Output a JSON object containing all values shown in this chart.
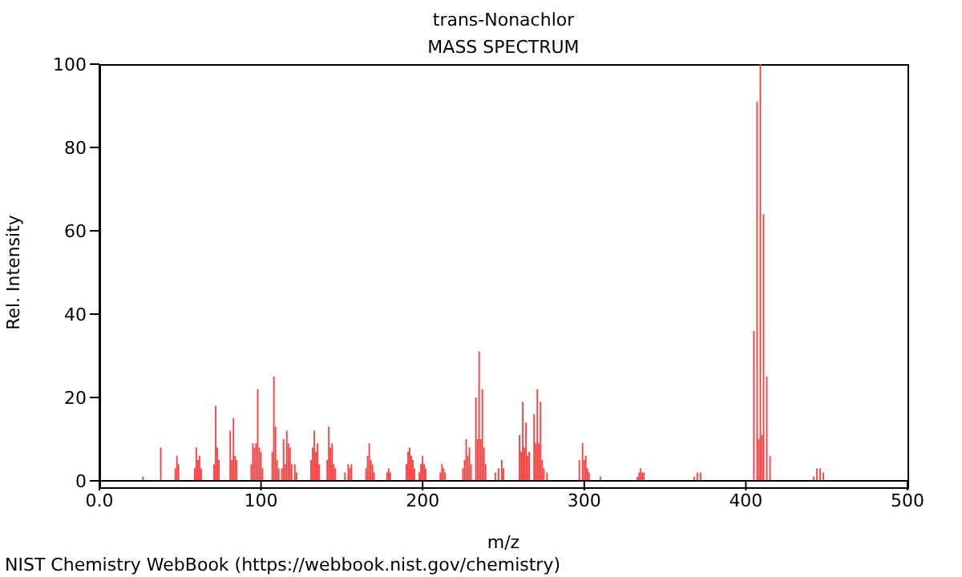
{
  "chart_data": {
    "type": "bar",
    "title": "trans-Nonachlor",
    "subtitle": "MASS SPECTRUM",
    "xlabel": "m/z",
    "ylabel": "Rel. Intensity",
    "annotations": [
      "NIST Chemistry WebBook (https://webbook.nist.gov/chemistry)"
    ],
    "x": [
      27,
      36,
      37,
      38,
      47,
      48,
      49,
      59,
      60,
      61,
      62,
      63,
      71,
      72,
      73,
      74,
      81,
      82,
      83,
      84,
      85,
      94,
      95,
      96,
      97,
      98,
      99,
      100,
      101,
      107,
      108,
      109,
      110,
      111,
      113,
      114,
      115,
      116,
      117,
      118,
      119,
      121,
      122,
      131,
      132,
      133,
      134,
      135,
      136,
      141,
      142,
      143,
      144,
      145,
      146,
      152,
      154,
      155,
      156,
      165,
      166,
      167,
      168,
      169,
      170,
      178,
      179,
      180,
      190,
      191,
      192,
      193,
      194,
      195,
      198,
      199,
      200,
      201,
      202,
      211,
      212,
      213,
      214,
      225,
      226,
      227,
      228,
      229,
      230,
      233,
      234,
      235,
      236,
      237,
      238,
      239,
      245,
      247,
      249,
      250,
      260,
      261,
      262,
      263,
      264,
      265,
      266,
      269,
      270,
      271,
      272,
      273,
      274,
      275,
      277,
      284,
      286,
      288,
      297,
      299,
      300,
      301,
      302,
      303,
      310,
      333,
      334,
      335,
      336,
      337,
      368,
      370,
      372,
      405,
      407,
      408,
      409,
      410,
      411,
      413,
      415,
      442,
      444,
      446,
      448
    ],
    "values": [
      1,
      null,
      null,
      8,
      3,
      6,
      4,
      3,
      8,
      5,
      6,
      3,
      4,
      18,
      8,
      5,
      12,
      5,
      15,
      6,
      5,
      4,
      9,
      8,
      9,
      22,
      8,
      7,
      3,
      7,
      25,
      13,
      5,
      3,
      3,
      10,
      4,
      12,
      9,
      8,
      4,
      4,
      2,
      5,
      8,
      12,
      7,
      9,
      4,
      5,
      13,
      8,
      9,
      4,
      3,
      2,
      4,
      3,
      4,
      3,
      6,
      9,
      5,
      4,
      2,
      2,
      3,
      2,
      4,
      7,
      8,
      6,
      5,
      3,
      2,
      4,
      6,
      4,
      3,
      2,
      4,
      3,
      2,
      3,
      5,
      10,
      6,
      8,
      4,
      20,
      10,
      31,
      10,
      22,
      8,
      4,
      2,
      3,
      5,
      3,
      11,
      7,
      19,
      8,
      14,
      6,
      7,
      16,
      9,
      22,
      9,
      19,
      5,
      3,
      2,
      null,
      null,
      null,
      5,
      9,
      5,
      6,
      3,
      2,
      1,
      1,
      2,
      3,
      2,
      2,
      1,
      2,
      2,
      36,
      91,
      10,
      100,
      11,
      64,
      25,
      6,
      1,
      3,
      3,
      2
    ],
    "color": "#ff3b3b",
    "xlim": [
      0,
      500
    ],
    "xticks": [
      {
        "value": 0,
        "label": "0.0"
      },
      100,
      200,
      300,
      400,
      500
    ],
    "ylim": [
      0,
      100
    ],
    "yticks": [
      0,
      20,
      40,
      60,
      80,
      100
    ],
    "grid": false,
    "legend": false
  }
}
